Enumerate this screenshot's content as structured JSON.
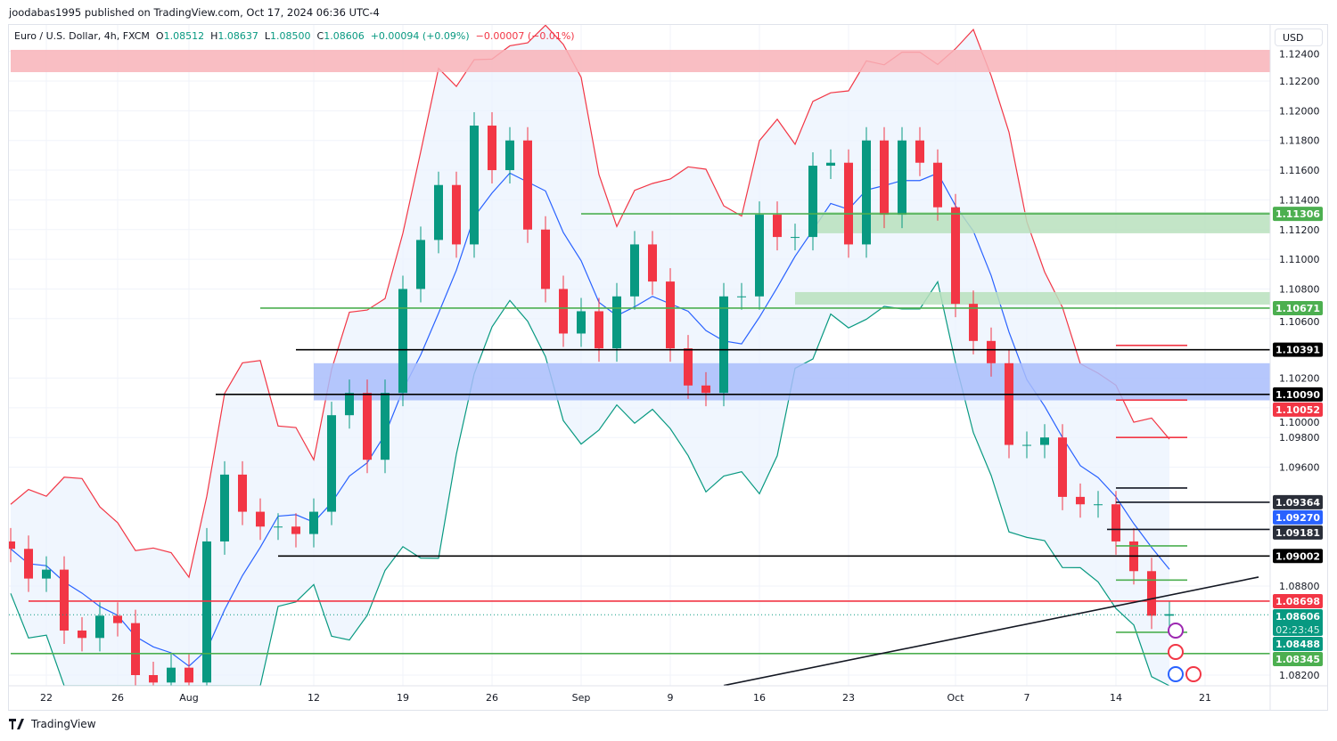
{
  "publisher_line": "joodabas1995 published on TradingView.com, Oct 17, 2024 06:36 UTC-4",
  "legend": {
    "symbol": "Euro / U.S. Dollar, 4h, FXCM",
    "o_label": "O",
    "o": "1.08512",
    "h_label": "H",
    "h": "1.08637",
    "l_label": "L",
    "l": "1.08500",
    "c_label": "C",
    "c": "1.08606",
    "change": "+0.00094 (+0.09%)",
    "change2": "−0.00007 (−0.01%)"
  },
  "currency_button": "USD",
  "footer": {
    "brand": "TradingView",
    "icon": "tradingview-logo-icon"
  },
  "chart_data": {
    "type": "candlestick",
    "symbol": "EURUSD",
    "interval": "4h",
    "ylim": [
      1.0813,
      1.1245
    ],
    "y_ticks": [
      "1.12400",
      "1.12200",
      "1.12000",
      "1.11800",
      "1.11600",
      "1.11400",
      "1.11200",
      "1.11000",
      "1.10800",
      "1.10600",
      "1.10200",
      "1.10000",
      "1.09800",
      "1.09600",
      "1.08800",
      "1.08200"
    ],
    "x_ticks": [
      [
        "2024-07-22",
        "22"
      ],
      [
        "2024-07-26",
        "26"
      ],
      [
        "2024-08-01",
        "Aug"
      ],
      [
        "2024-08-12",
        "12"
      ],
      [
        "2024-08-19",
        "19"
      ],
      [
        "2024-08-26",
        "26"
      ],
      [
        "2024-09-02",
        "Sep"
      ],
      [
        "2024-09-09",
        "9"
      ],
      [
        "2024-09-16",
        "16"
      ],
      [
        "2024-09-23",
        "23"
      ],
      [
        "2024-10-01",
        "Oct"
      ],
      [
        "2024-10-07",
        "7"
      ],
      [
        "2024-10-14",
        "14"
      ],
      [
        "2024-10-21",
        "21"
      ]
    ],
    "closes": [
      [
        "2024-07-18",
        1.0905
      ],
      [
        "2024-07-19",
        1.0885
      ],
      [
        "2024-07-22",
        1.0891
      ],
      [
        "2024-07-23",
        1.085
      ],
      [
        "2024-07-24",
        1.0845
      ],
      [
        "2024-07-25",
        1.086
      ],
      [
        "2024-07-26",
        1.0855
      ],
      [
        "2024-07-29",
        1.082
      ],
      [
        "2024-07-30",
        1.0815
      ],
      [
        "2024-07-31",
        1.0825
      ],
      [
        "2024-08-01",
        1.0815
      ],
      [
        "2024-08-02",
        1.091
      ],
      [
        "2024-08-05",
        1.0955
      ],
      [
        "2024-08-06",
        1.093
      ],
      [
        "2024-08-07",
        1.092
      ],
      [
        "2024-08-08",
        1.092
      ],
      [
        "2024-08-09",
        1.0915
      ],
      [
        "2024-08-12",
        1.093
      ],
      [
        "2024-08-13",
        1.0995
      ],
      [
        "2024-08-14",
        1.101
      ],
      [
        "2024-08-15",
        1.0965
      ],
      [
        "2024-08-16",
        1.101
      ],
      [
        "2024-08-19",
        1.108
      ],
      [
        "2024-08-20",
        1.1113
      ],
      [
        "2024-08-21",
        1.115
      ],
      [
        "2024-08-22",
        1.111
      ],
      [
        "2024-08-23",
        1.119
      ],
      [
        "2024-08-26",
        1.116
      ],
      [
        "2024-08-27",
        1.118
      ],
      [
        "2024-08-28",
        1.112
      ],
      [
        "2024-08-29",
        1.108
      ],
      [
        "2024-08-30",
        1.105
      ],
      [
        "2024-09-02",
        1.1065
      ],
      [
        "2024-09-03",
        1.104
      ],
      [
        "2024-09-04",
        1.1075
      ],
      [
        "2024-09-05",
        1.111
      ],
      [
        "2024-09-06",
        1.1085
      ],
      [
        "2024-09-09",
        1.104
      ],
      [
        "2024-09-10",
        1.1015
      ],
      [
        "2024-09-11",
        1.101
      ],
      [
        "2024-09-12",
        1.1075
      ],
      [
        "2024-09-13",
        1.1075
      ],
      [
        "2024-09-16",
        1.113
      ],
      [
        "2024-09-17",
        1.1115
      ],
      [
        "2024-09-18",
        1.1115
      ],
      [
        "2024-09-19",
        1.1163
      ],
      [
        "2024-09-20",
        1.1165
      ],
      [
        "2024-09-23",
        1.111
      ],
      [
        "2024-09-24",
        1.118
      ],
      [
        "2024-09-25",
        1.113
      ],
      [
        "2024-09-26",
        1.118
      ],
      [
        "2024-09-27",
        1.1165
      ],
      [
        "2024-09-30",
        1.1135
      ],
      [
        "2024-10-01",
        1.107
      ],
      [
        "2024-10-02",
        1.1045
      ],
      [
        "2024-10-03",
        1.103
      ],
      [
        "2024-10-04",
        1.0975
      ],
      [
        "2024-10-07",
        1.0975
      ],
      [
        "2024-10-08",
        1.098
      ],
      [
        "2024-10-09",
        1.094
      ],
      [
        "2024-10-10",
        1.0935
      ],
      [
        "2024-10-11",
        1.0935
      ],
      [
        "2024-10-14",
        1.091
      ],
      [
        "2024-10-15",
        1.089
      ],
      [
        "2024-10-16",
        1.086
      ],
      [
        "2024-10-17",
        1.0861
      ]
    ],
    "indicators": [
      "Bollinger Bands"
    ],
    "zones": [
      {
        "from": 1.1226,
        "to": 1.1241,
        "start": "2024-07-18",
        "color": "#f8b3b8"
      },
      {
        "from": 1.1005,
        "to": 1.103,
        "start": "2024-08-12",
        "color": "#a9bdfb"
      },
      {
        "from": 1.11175,
        "to": 1.11318,
        "start": "2024-09-19",
        "color": "#b9e1bd"
      },
      {
        "from": 1.10695,
        "to": 1.10779,
        "start": "2024-09-18",
        "color": "#b9e1bd"
      }
    ],
    "levels": [
      {
        "price": 1.11306,
        "start": "2024-09-02",
        "end": "axis",
        "color": "#4caf50",
        "label": "1.11306"
      },
      {
        "price": 1.10671,
        "start": "2024-08-07",
        "end": "axis",
        "color": "#4caf50",
        "label": "1.10671"
      },
      {
        "price": 1.10391,
        "start": "2024-08-09",
        "end": "axis",
        "color": "#000000",
        "label": "1.10391"
      },
      {
        "price": 1.1009,
        "start": "2024-08-04",
        "end": "axis",
        "color": "#000000",
        "label": "1.10090"
      },
      {
        "price": 1.10052,
        "start": "2024-10-14",
        "end": "2024-10-18",
        "color": "#f23645",
        "label": "1.10052"
      },
      {
        "price": 1.098,
        "start": "2024-10-14",
        "end": "2024-10-18",
        "color": "#f23645"
      },
      {
        "price": 1.1042,
        "start": "2024-10-14",
        "end": "2024-10-18",
        "color": "#f23645"
      },
      {
        "price": 1.0946,
        "start": "2024-10-14",
        "end": "2024-10-18",
        "color": "#131722"
      },
      {
        "price": 1.09364,
        "start": "2024-10-14",
        "end": "axis",
        "color": "#131722",
        "label": "1.09364"
      },
      {
        "price": 1.09181,
        "start": "2024-10-12",
        "end": "axis",
        "color": "#131722",
        "label": "1.09181"
      },
      {
        "price": 1.0907,
        "start": "2024-10-14",
        "end": "2024-10-18",
        "color": "#4caf50"
      },
      {
        "price": 1.0884,
        "start": "2024-10-14",
        "end": "2024-10-18",
        "color": "#4caf50"
      },
      {
        "price": 1.09002,
        "start": "2024-08-08",
        "end": "axis",
        "color": "#000000",
        "label": "1.09002"
      },
      {
        "price": 1.08698,
        "start": "2024-07-19",
        "end": "axis",
        "color": "#f23645",
        "label": "1.08698"
      },
      {
        "price": 1.08488,
        "start": "2024-10-14",
        "end": "2024-10-18",
        "color": "#4caf50",
        "label": "1.08488",
        "label_color": "#089981"
      },
      {
        "price": 1.08345,
        "start": "2024-07-18",
        "end": "axis",
        "color": "#4caf50",
        "label": "1.08345"
      }
    ],
    "trendline": {
      "from": [
        "2024-09-12",
        1.0813
      ],
      "to": [
        "2024-10-24",
        1.0886
      ],
      "color": "#131722"
    },
    "axis_tags": [
      {
        "price": 1.0927,
        "label": "1.09270",
        "color": "#2962ff"
      },
      {
        "price": 1.08606,
        "label": "1.08606",
        "sub": "02:23:45",
        "color": "#089981"
      }
    ],
    "colors": {
      "up": "#089981",
      "down": "#f23645",
      "bb_upper": "#f23645",
      "bb_mid": "#2962ff",
      "bb_lower": "#089981",
      "bb_fill": "#eaf2fd"
    },
    "event_icons": [
      "lightning-icon",
      "us-flag-icon",
      "eu-flag-icon",
      "us-flag-icon"
    ]
  }
}
